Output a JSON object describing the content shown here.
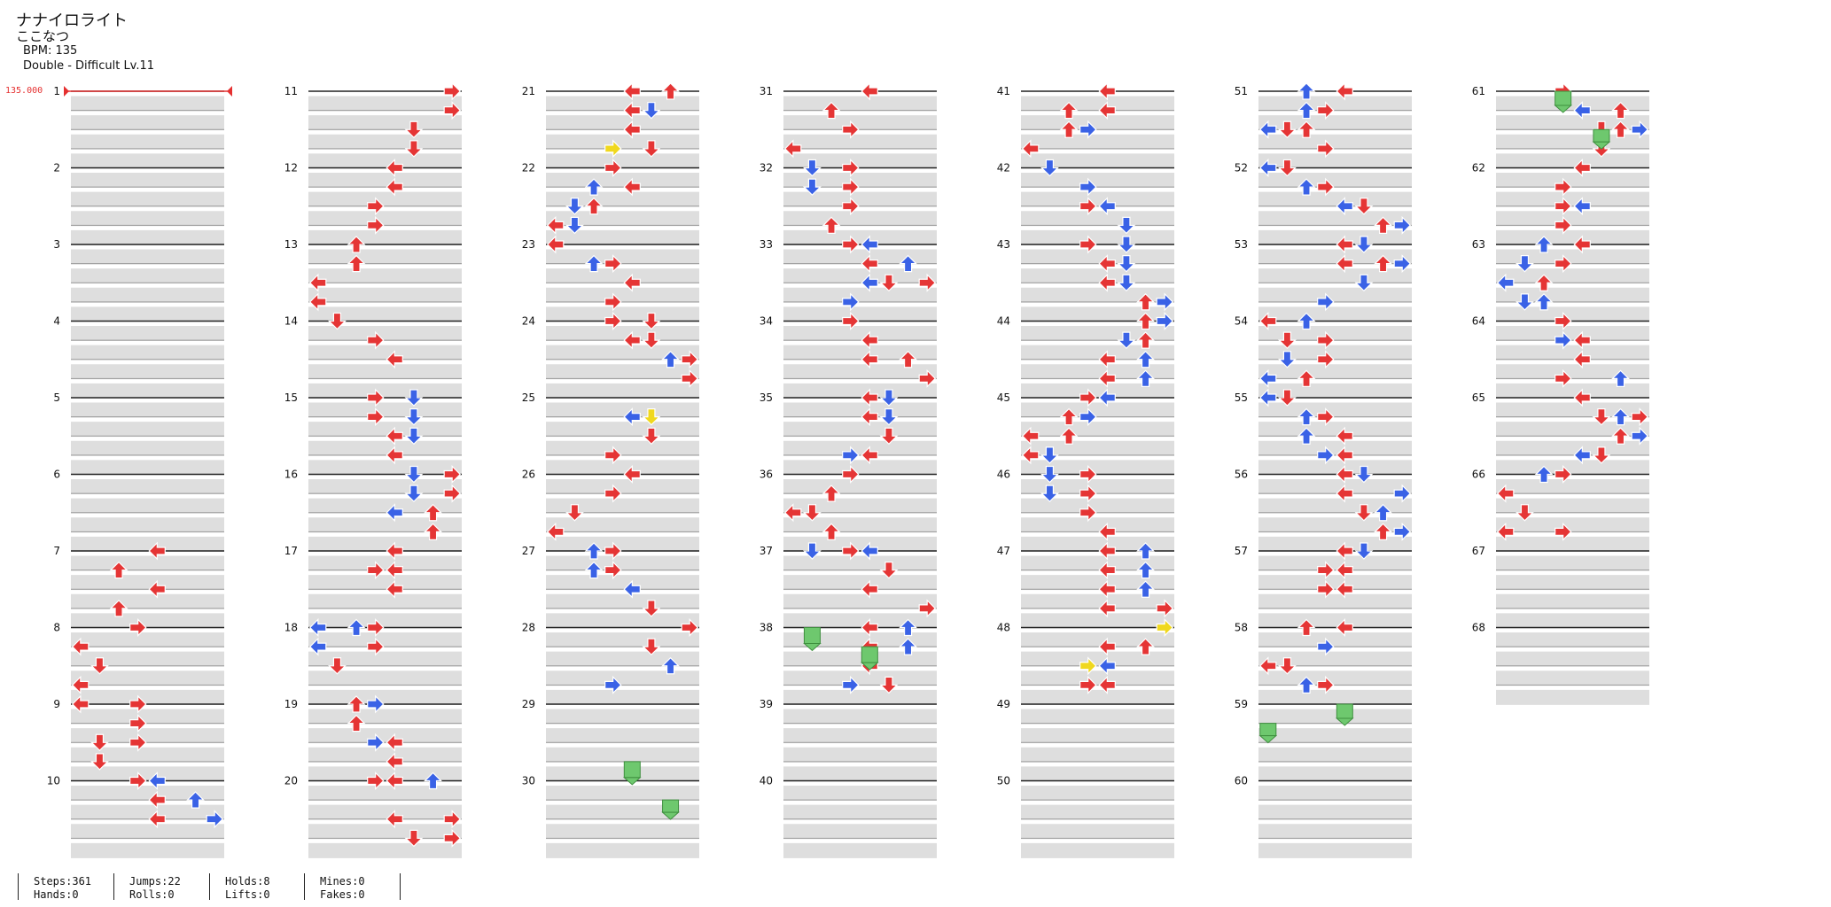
{
  "song": {
    "title": "ナナイロライト",
    "artist": "ここなつ",
    "bpm_label": "BPM: 135",
    "chart_label": "Double - Difficult Lv.11"
  },
  "bpm_marker": "135.000",
  "measure_numbers": [
    "1",
    "2",
    "3",
    "4",
    "5",
    "6",
    "7",
    "8",
    "9",
    "10",
    "11",
    "12",
    "13",
    "14",
    "15",
    "16",
    "17",
    "18",
    "19",
    "20",
    "21",
    "22",
    "23",
    "24",
    "25",
    "26",
    "27",
    "28",
    "29",
    "30",
    "31",
    "32",
    "33",
    "34",
    "35",
    "36",
    "37",
    "38",
    "39",
    "40",
    "41",
    "42",
    "43",
    "44",
    "45",
    "46",
    "47",
    "48",
    "49",
    "50",
    "51",
    "52",
    "53",
    "54",
    "55",
    "56",
    "57",
    "58",
    "59",
    "60",
    "61",
    "62",
    "63",
    "64",
    "65",
    "66",
    "67",
    "68"
  ],
  "stats": [
    {
      "line1": "Steps:361",
      "line2": "Hands:0"
    },
    {
      "line1": "Jumps:22",
      "line2": "Rolls:0"
    },
    {
      "line1": "Holds:8",
      "line2": "Lifts:0"
    },
    {
      "line1": "Mines:0",
      "line2": "Fakes:0"
    }
  ],
  "colors": {
    "quarter": "#e53535",
    "eighth": "#3a62e6",
    "sixteenth": "#f0d81e",
    "hold": "#6ec86e",
    "band": "#dedede",
    "measure_line": "#222222",
    "beat_line": "#9a9a9a",
    "bpm": "#e53030"
  },
  "note_sample_m11": [
    {
      "measure": 11,
      "beat": 0,
      "lane": 7,
      "dir": "right",
      "color": "quarter"
    },
    {
      "measure": 11,
      "beat": 1,
      "lane": 7,
      "dir": "right",
      "color": "quarter"
    },
    {
      "measure": 11,
      "beat": 2,
      "lane": 5,
      "dir": "down",
      "color": "quarter"
    },
    {
      "measure": 11,
      "beat": 3,
      "lane": 5,
      "dir": "down",
      "color": "quarter"
    }
  ]
}
